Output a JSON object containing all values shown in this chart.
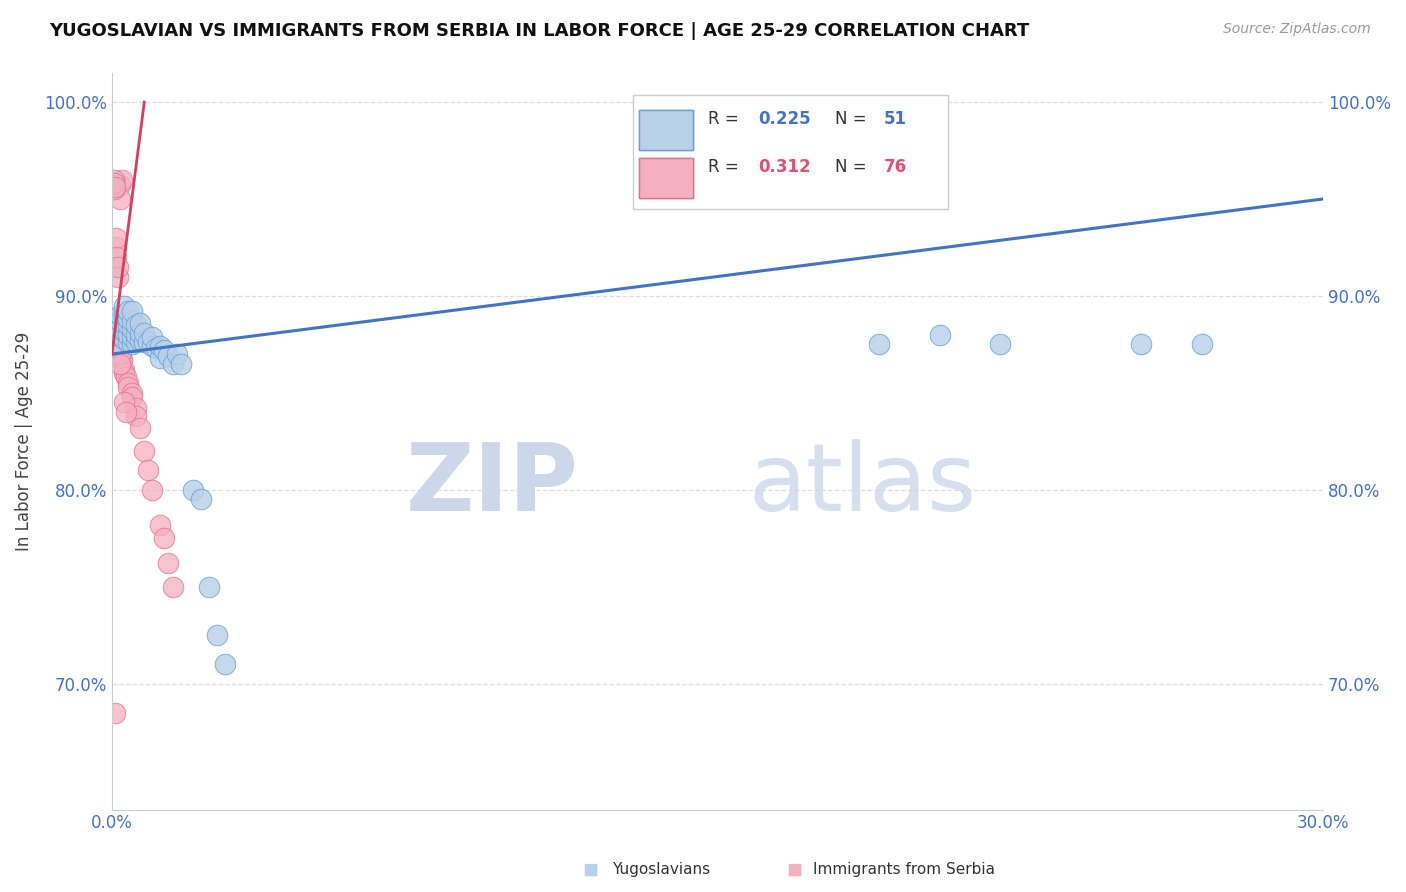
{
  "title": "YUGOSLAVIAN VS IMMIGRANTS FROM SERBIA IN LABOR FORCE | AGE 25-29 CORRELATION CHART",
  "source": "Source: ZipAtlas.com",
  "ylabel": "In Labor Force | Age 25-29",
  "xlim": [
    0.0,
    0.3
  ],
  "ylim": [
    0.635,
    1.015
  ],
  "xticks": [
    0.0,
    0.3
  ],
  "xticklabels": [
    "0.0%",
    "30.0%"
  ],
  "yticks": [
    0.7,
    0.8,
    0.9,
    1.0
  ],
  "yticklabels": [
    "70.0%",
    "80.0%",
    "90.0%",
    "100.0%"
  ],
  "legend_r1_val": "0.225",
  "legend_n1_val": "51",
  "legend_r2_val": "0.312",
  "legend_n2_val": "76",
  "blue_color": "#b8d0e8",
  "pink_color": "#f4afc0",
  "blue_edge_color": "#6a9fd0",
  "pink_edge_color": "#e07090",
  "blue_line_color": "#4472c4",
  "pink_line_color": "#d04060",
  "blue_r_color": "#4472c4",
  "pink_r_color": "#e05070",
  "blue_scatter_x": [
    0.001,
    0.001,
    0.001,
    0.002,
    0.002,
    0.002,
    0.002,
    0.003,
    0.003,
    0.003,
    0.003,
    0.003,
    0.004,
    0.004,
    0.004,
    0.004,
    0.004,
    0.005,
    0.005,
    0.005,
    0.005,
    0.005,
    0.006,
    0.006,
    0.006,
    0.007,
    0.007,
    0.007,
    0.008,
    0.008,
    0.009,
    0.01,
    0.01,
    0.011,
    0.012,
    0.012,
    0.013,
    0.014,
    0.015,
    0.016,
    0.017,
    0.02,
    0.022,
    0.024,
    0.026,
    0.028,
    0.19,
    0.205,
    0.22,
    0.255,
    0.27
  ],
  "blue_scatter_y": [
    0.875,
    0.88,
    0.885,
    0.88,
    0.883,
    0.887,
    0.89,
    0.878,
    0.882,
    0.886,
    0.89,
    0.895,
    0.876,
    0.88,
    0.885,
    0.888,
    0.892,
    0.875,
    0.879,
    0.883,
    0.887,
    0.892,
    0.876,
    0.88,
    0.885,
    0.877,
    0.881,
    0.886,
    0.876,
    0.881,
    0.876,
    0.874,
    0.879,
    0.873,
    0.868,
    0.874,
    0.872,
    0.869,
    0.865,
    0.87,
    0.865,
    0.8,
    0.795,
    0.75,
    0.725,
    0.71,
    0.875,
    0.88,
    0.875,
    0.875,
    0.875
  ],
  "pink_scatter_x": [
    0.0003,
    0.0003,
    0.0003,
    0.0004,
    0.0004,
    0.0005,
    0.0005,
    0.0005,
    0.0006,
    0.0006,
    0.0007,
    0.0007,
    0.0007,
    0.0008,
    0.0008,
    0.0008,
    0.0009,
    0.0009,
    0.001,
    0.001,
    0.001,
    0.001,
    0.0012,
    0.0012,
    0.0013,
    0.0013,
    0.0014,
    0.0014,
    0.0015,
    0.0015,
    0.0016,
    0.0016,
    0.0017,
    0.0018,
    0.0018,
    0.0019,
    0.002,
    0.002,
    0.0021,
    0.0022,
    0.0023,
    0.0025,
    0.003,
    0.003,
    0.0035,
    0.004,
    0.004,
    0.005,
    0.005,
    0.006,
    0.006,
    0.007,
    0.008,
    0.009,
    0.01,
    0.012,
    0.013,
    0.014,
    0.015,
    0.002,
    0.002,
    0.0025,
    0.0005,
    0.0005,
    0.0006,
    0.0007,
    0.001,
    0.001,
    0.001,
    0.0015,
    0.0015,
    0.002,
    0.002,
    0.003,
    0.0035,
    0.0008
  ],
  "pink_scatter_y": [
    0.875,
    0.88,
    0.888,
    0.882,
    0.887,
    0.875,
    0.88,
    0.887,
    0.878,
    0.884,
    0.875,
    0.882,
    0.888,
    0.876,
    0.881,
    0.886,
    0.875,
    0.88,
    0.874,
    0.879,
    0.884,
    0.888,
    0.874,
    0.879,
    0.875,
    0.88,
    0.875,
    0.88,
    0.874,
    0.879,
    0.874,
    0.879,
    0.873,
    0.872,
    0.877,
    0.871,
    0.87,
    0.875,
    0.869,
    0.869,
    0.868,
    0.867,
    0.862,
    0.86,
    0.858,
    0.855,
    0.853,
    0.85,
    0.848,
    0.842,
    0.838,
    0.832,
    0.82,
    0.81,
    0.8,
    0.782,
    0.775,
    0.762,
    0.75,
    0.957,
    0.95,
    0.96,
    0.955,
    0.96,
    0.958,
    0.956,
    0.925,
    0.93,
    0.92,
    0.91,
    0.915,
    0.87,
    0.865,
    0.845,
    0.84,
    0.685
  ],
  "watermark_zip": "ZIP",
  "watermark_atlas": "atlas",
  "background_color": "#ffffff",
  "grid_color": "#dddddd",
  "tick_color": "#4472c4"
}
